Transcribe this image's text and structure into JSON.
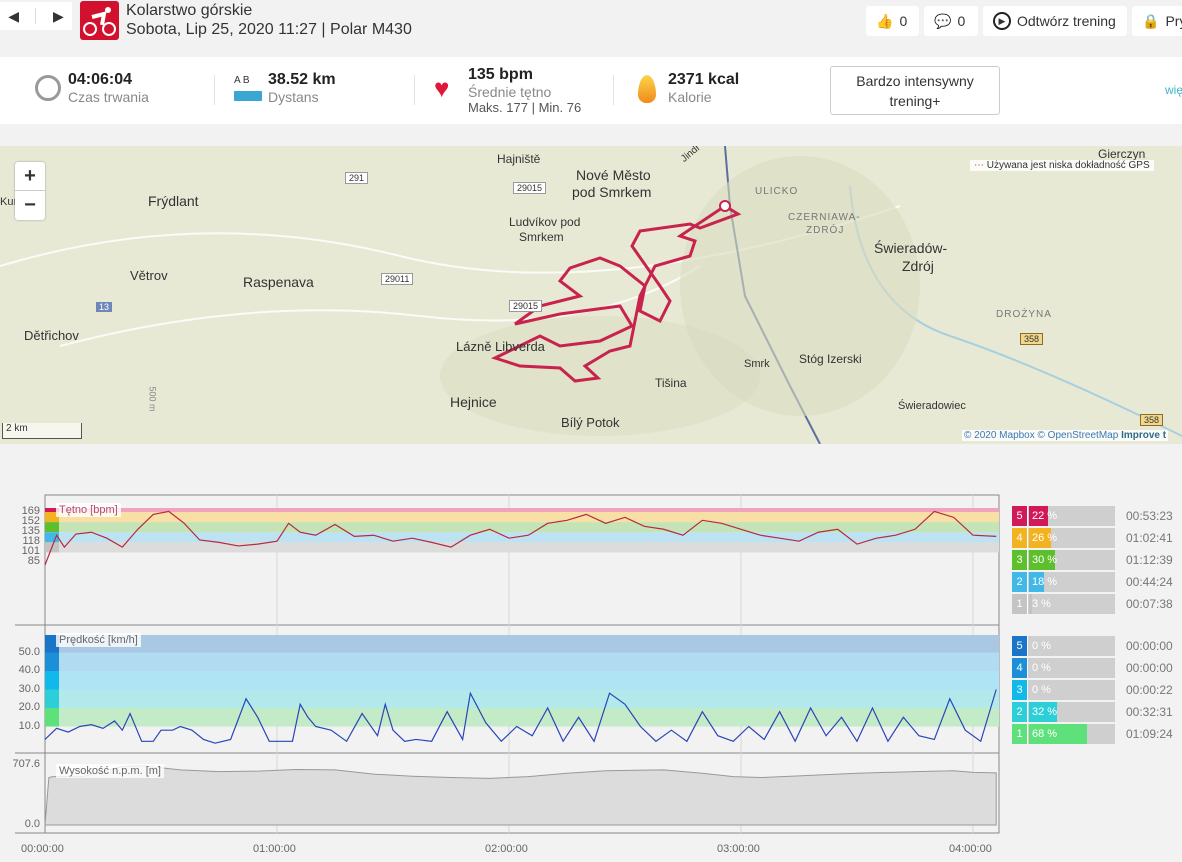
{
  "header": {
    "prev": "◀",
    "next": "▶",
    "sport": "Kolarstwo górskie",
    "subtitle": "Sobota, Lip 25, 2020 11:27 | Polar M430",
    "likes": "0",
    "comments": "0",
    "replay": "Odtwórz trening",
    "privacy": "Pry"
  },
  "stats": {
    "duration": "04:06:04",
    "duration_label": "Czas trwania",
    "distance": "38.52 km",
    "distance_label": "Dystans",
    "ab": "A  B",
    "hr": "135 bpm",
    "hr_label": "Średnie tętno",
    "hr_minmax": "Maks. 177  |  Min. 76",
    "kcal": "2371 kcal",
    "kcal_label": "Kalorie",
    "intensity": "Bardzo intensywny trening+",
    "more": "wię"
  },
  "map": {
    "zoom_in": "+",
    "zoom_out": "−",
    "legend": "Używana jest niska dokładność GPS",
    "scale": "2 km",
    "attribution": {
      "a": "© 2020 Mapbox",
      "b": "© OpenStreetMap",
      "c": "Improve t"
    },
    "labels": {
      "frydlant": "Frýdlant",
      "hajniste": "Hajniště",
      "nove": "Nové Město",
      "pod": "pod Smrkem",
      "ludvikov": "Ludvíkov pod",
      "smrkem": "Smrkem",
      "vetrov": "Větrov",
      "raspenava": "Raspenava",
      "detrichov": "Dětřichov",
      "lazne": "Lázně Libverda",
      "hejnice": "Hejnice",
      "bily": "Bílý Potok",
      "tisina": "Tišina",
      "smrk": "Smrk",
      "stog": "Stóg Izerski",
      "swieradow": "Świeradów-",
      "zdroj": "Zdrój",
      "swieradowiec": "Świeradowiec",
      "gierczyn": "Gierczyn",
      "ulicko": "ULICKO",
      "czerniawa": "CZERNIAWA-",
      "czdroj": "ZDRÓJ",
      "drozyna": "DROŻYNA",
      "kunr": "Kun",
      "jindr": "Jindř",
      "m500": "500 m",
      "r291": "291",
      "r29015a": "29015",
      "r29011": "29011",
      "r29015b": "29015",
      "r13": "13",
      "r358a": "358",
      "r358b": "358"
    }
  },
  "hr_zones": [
    {
      "zone": "5",
      "pct": "22 %",
      "time": "00:53:23",
      "fill": 22,
      "color": "#d1195a"
    },
    {
      "zone": "4",
      "pct": "26 %",
      "time": "01:02:41",
      "fill": 26,
      "color": "#f3b220"
    },
    {
      "zone": "3",
      "pct": "30 %",
      "time": "01:12:39",
      "fill": 30,
      "color": "#5ebf2d"
    },
    {
      "zone": "2",
      "pct": "18 %",
      "time": "00:44:24",
      "fill": 18,
      "color": "#41b8e8"
    },
    {
      "zone": "1",
      "pct": "3 %",
      "time": "00:07:38",
      "fill": 3,
      "color": "#c4c4c4"
    }
  ],
  "speed_zones": [
    {
      "zone": "5",
      "pct": "0 %",
      "time": "00:00:00",
      "fill": 0,
      "color": "#1a74c8"
    },
    {
      "zone": "4",
      "pct": "0 %",
      "time": "00:00:00",
      "fill": 0,
      "color": "#1d8fd8"
    },
    {
      "zone": "3",
      "pct": "0 %",
      "time": "00:00:22",
      "fill": 0,
      "color": "#11b9ea"
    },
    {
      "zone": "2",
      "pct": "32 %",
      "time": "00:32:31",
      "fill": 32,
      "color": "#2ccfd8"
    },
    {
      "zone": "1",
      "pct": "68 %",
      "time": "01:09:24",
      "fill": 68,
      "color": "#5ee07a"
    }
  ],
  "chart_data": [
    {
      "type": "line",
      "title": "Tętno [bpm]",
      "yticks": [
        "169",
        "152",
        "135",
        "118",
        "101",
        "85"
      ],
      "zones": [
        169,
        152,
        135,
        118,
        101,
        85
      ],
      "x": [
        0,
        3,
        5,
        8,
        12,
        16,
        20,
        24,
        28,
        32,
        36,
        40,
        45,
        50,
        55,
        60,
        63,
        66,
        70,
        75,
        80,
        85,
        90,
        95,
        100,
        105,
        110,
        115,
        120,
        125,
        130,
        135,
        140,
        145,
        150,
        155,
        160,
        165,
        170,
        175,
        180,
        185,
        190,
        195,
        200,
        205,
        210,
        215,
        220,
        225,
        230,
        235,
        240,
        246
      ],
      "y": [
        80,
        130,
        110,
        132,
        135,
        125,
        110,
        140,
        165,
        170,
        150,
        122,
        118,
        112,
        115,
        120,
        150,
        135,
        130,
        148,
        128,
        130,
        120,
        125,
        118,
        110,
        130,
        140,
        125,
        130,
        150,
        155,
        165,
        150,
        160,
        145,
        140,
        130,
        155,
        150,
        140,
        130,
        125,
        120,
        135,
        140,
        115,
        125,
        130,
        140,
        170,
        160,
        130,
        128
      ]
    },
    {
      "type": "line",
      "title": "Prędkość [km/h]",
      "yticks": [
        "50.0",
        "40.0",
        "30.0",
        "20.0",
        "10.0"
      ],
      "x": [
        0,
        3,
        6,
        9,
        12,
        15,
        18,
        20,
        22,
        25,
        28,
        30,
        33,
        35,
        38,
        41,
        44,
        48,
        52,
        55,
        58,
        60,
        62,
        64,
        66,
        68,
        70,
        74,
        78,
        82,
        86,
        88,
        90,
        93,
        96,
        100,
        104,
        108,
        110,
        114,
        118,
        122,
        126,
        130,
        134,
        138,
        142,
        146,
        150,
        154,
        158,
        162,
        166,
        170,
        174,
        178,
        182,
        186,
        190,
        194,
        198,
        202,
        206,
        210,
        214,
        218,
        222,
        226,
        230,
        234,
        238,
        242,
        246
      ],
      "y": [
        3,
        9,
        7,
        10,
        11,
        9,
        13,
        8,
        17,
        2,
        2,
        8,
        8,
        10,
        8,
        3,
        1,
        3,
        25,
        15,
        2,
        2,
        2,
        2,
        22,
        15,
        10,
        8,
        2,
        17,
        5,
        22,
        8,
        2,
        3,
        2,
        18,
        3,
        28,
        12,
        2,
        10,
        5,
        20,
        2,
        15,
        2,
        28,
        22,
        10,
        2,
        8,
        2,
        18,
        5,
        2,
        10,
        3,
        18,
        2,
        20,
        5,
        15,
        2,
        20,
        2,
        15,
        5,
        3,
        25,
        8,
        2,
        30
      ]
    },
    {
      "type": "area",
      "title": "Wysokość n.p.m. [m]",
      "yticks": [
        "707.6",
        "0.0"
      ],
      "ylim": [
        0,
        707.6
      ],
      "x": [
        0,
        1,
        2,
        10,
        20,
        25,
        35,
        45,
        55,
        65,
        75,
        85,
        95,
        105,
        115,
        125,
        135,
        145,
        160,
        170,
        178,
        185,
        195,
        210,
        225,
        235,
        240,
        246
      ],
      "y": [
        0,
        560,
        570,
        575,
        690,
        700,
        650,
        630,
        635,
        655,
        650,
        600,
        575,
        560,
        550,
        570,
        610,
        640,
        650,
        610,
        570,
        560,
        580,
        610,
        630,
        640,
        620,
        615
      ]
    }
  ],
  "xaxis": [
    "00:00:00",
    "01:00:00",
    "02:00:00",
    "03:00:00",
    "04:00:00"
  ]
}
